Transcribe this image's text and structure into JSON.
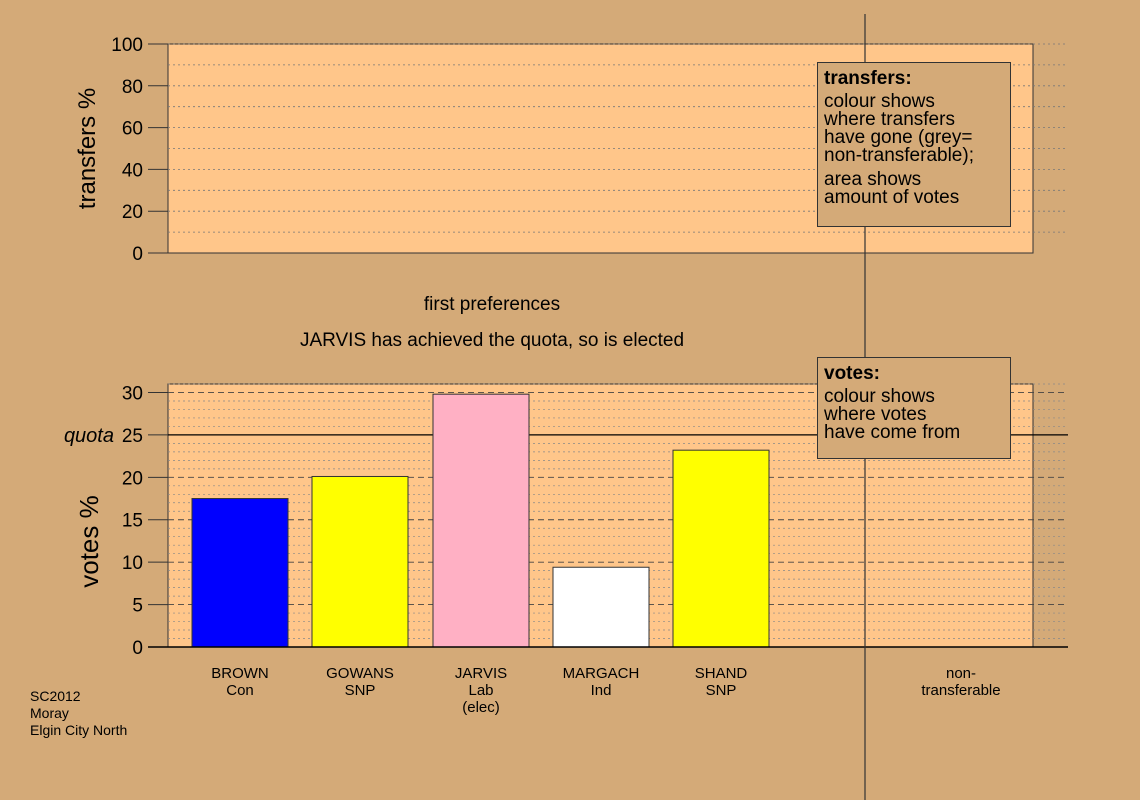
{
  "chart_data": [
    {
      "type": "bar",
      "name": "transfers",
      "ylabel": "transfers %",
      "ylim": [
        0,
        100
      ],
      "yticks": [
        0,
        20,
        40,
        60,
        80,
        100
      ],
      "categories": [
        "BROWN\nCon",
        "GOWANS\nSNP",
        "JARVIS\nLab\n(elec)",
        "MARGACH\nInd",
        "SHAND\nSNP",
        "non-\ntransferable"
      ],
      "values": [
        0,
        0,
        0,
        0,
        0,
        0
      ],
      "grid": "dotted horizontal"
    },
    {
      "type": "bar",
      "name": "votes",
      "ylabel": "votes %",
      "ylim": [
        0,
        31
      ],
      "yticks": [
        0,
        5,
        10,
        15,
        20,
        25,
        30
      ],
      "categories": [
        "BROWN\nCon",
        "GOWANS\nSNP",
        "JARVIS\nLab\n(elec)",
        "MARGACH\nInd",
        "SHAND\nSNP",
        "non-\ntransferable"
      ],
      "values": [
        17.5,
        20.1,
        29.8,
        9.4,
        23.2,
        0
      ],
      "colors": [
        "#0000ff",
        "#ffff00",
        "#ffb0c4",
        "#ffffff",
        "#ffff00",
        "#d4aa78"
      ],
      "quota": 25,
      "quota_label": "quota",
      "grid": "dashed horizontal"
    }
  ],
  "stage_label": "first preferences",
  "message": "JARVIS has achieved the quota, so is elected",
  "legend_transfers": {
    "title": "transfers:",
    "lines1": [
      "colour shows",
      "where transfers",
      "have gone (grey=",
      "non-transferable);"
    ],
    "lines2": [
      "area shows",
      "amount of votes"
    ]
  },
  "legend_votes": {
    "title": "votes:",
    "lines": [
      "colour shows",
      "where votes",
      "have come from"
    ]
  },
  "footer": [
    "SC2012",
    "Moray",
    "Elgin City North"
  ],
  "colors": {
    "background": "#d4aa78",
    "plot_bg": "#ffc68a"
  }
}
